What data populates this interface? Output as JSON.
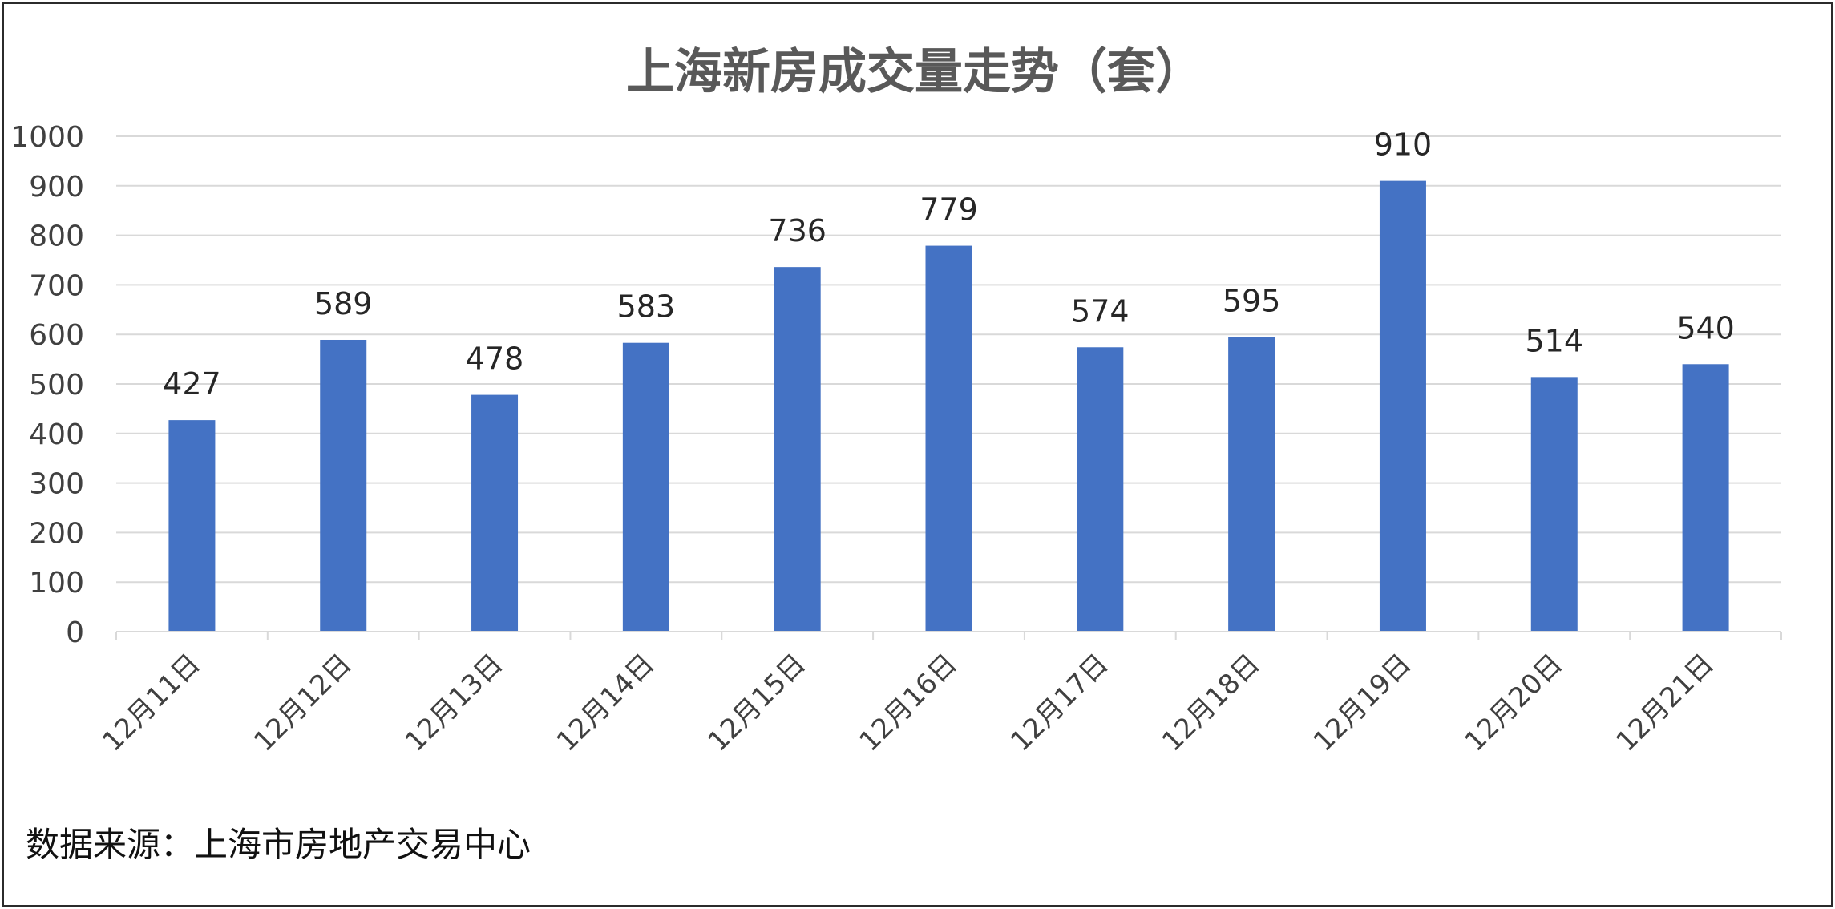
{
  "chart_data": {
    "type": "bar",
    "title": "上海新房成交量走势（套）",
    "categories": [
      "12月11日",
      "12月12日",
      "12月13日",
      "12月14日",
      "12月15日",
      "12月16日",
      "12月17日",
      "12月18日",
      "12月19日",
      "12月20日",
      "12月21日"
    ],
    "values": [
      427,
      589,
      478,
      583,
      736,
      779,
      574,
      595,
      910,
      514,
      540
    ],
    "data_labels": [
      "427",
      "589",
      "478",
      "583",
      "736",
      "779",
      "574",
      "595",
      "910",
      "514",
      "540"
    ],
    "y_ticks": [
      "0",
      "100",
      "200",
      "300",
      "400",
      "500",
      "600",
      "700",
      "800",
      "900",
      "1000"
    ],
    "ylim": [
      0,
      1000
    ],
    "xlabel": "",
    "ylabel": "",
    "grid": true,
    "legend": "none",
    "bar_color": "#4472C4",
    "gridline_color": "#D9D9D9"
  },
  "source_note": "数据来源：上海市房地产交易中心"
}
